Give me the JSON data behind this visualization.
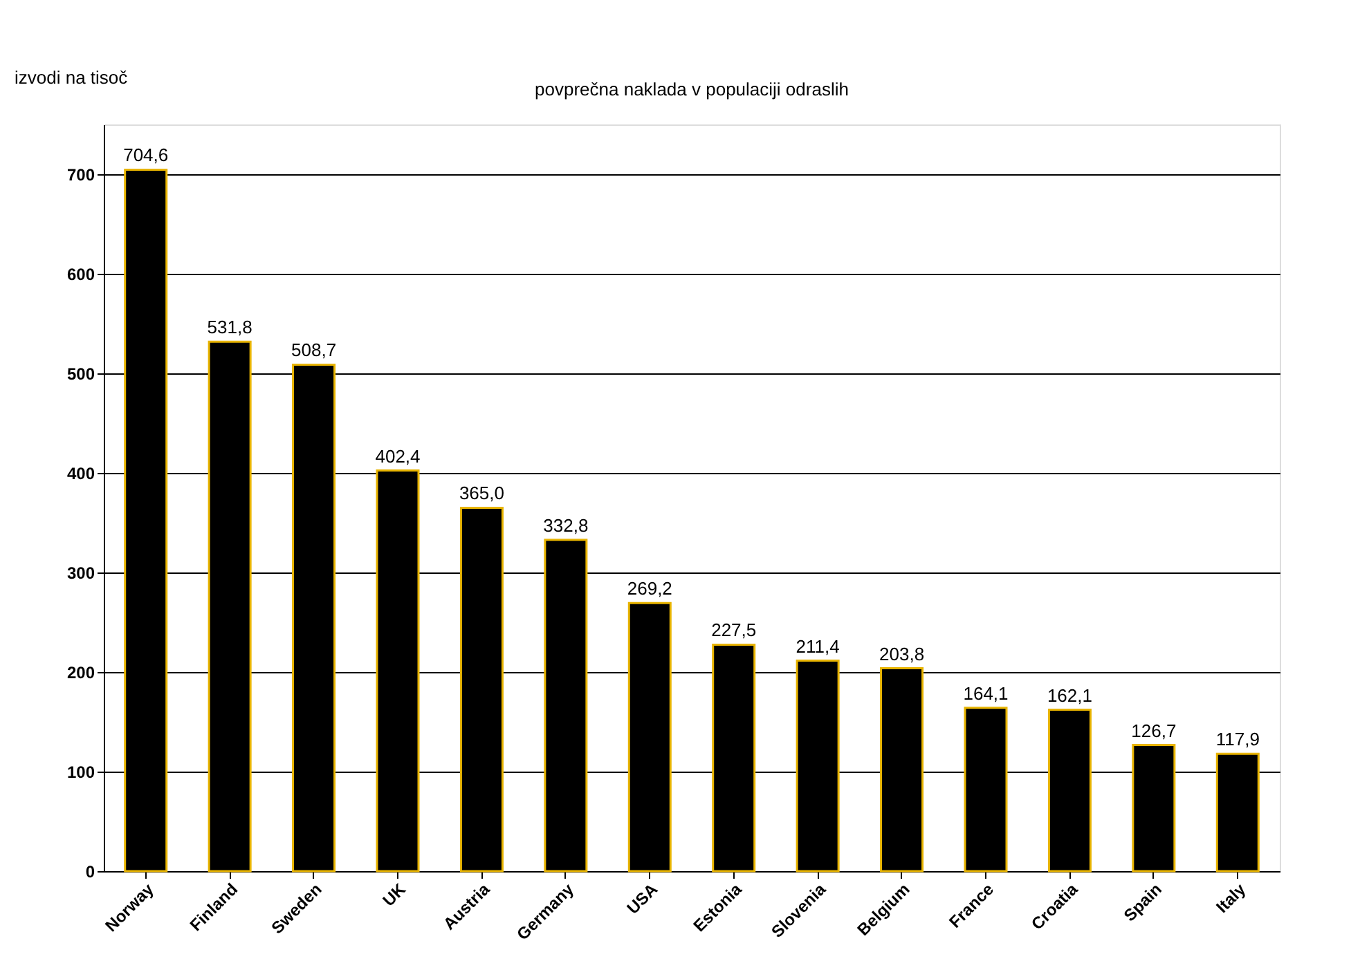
{
  "chart_data": {
    "type": "bar",
    "title": "povprečna naklada v populaciji odraslih",
    "ylabel": "izvodi na tisoč",
    "categories": [
      "Norway",
      "Finland",
      "Sweden",
      "UK",
      "Austria",
      "Germany",
      "USA",
      "Estonia",
      "Slovenia",
      "Belgium",
      "France",
      "Croatia",
      "Spain",
      "Italy"
    ],
    "values": [
      704.6,
      531.8,
      508.7,
      402.4,
      365.0,
      332.8,
      269.2,
      227.5,
      211.4,
      203.8,
      164.1,
      162.1,
      126.7,
      117.9
    ],
    "value_labels": [
      "704,6",
      "531,8",
      "508,7",
      "402,4",
      "365,0",
      "332,8",
      "269,2",
      "227,5",
      "211,4",
      "203,8",
      "164,1",
      "162,1",
      "126,7",
      "117,9"
    ],
    "color": "#000000",
    "ylim": [
      0,
      750
    ],
    "yticks": [
      0,
      100,
      200,
      300,
      400,
      500,
      600,
      700
    ],
    "grid": "y"
  }
}
